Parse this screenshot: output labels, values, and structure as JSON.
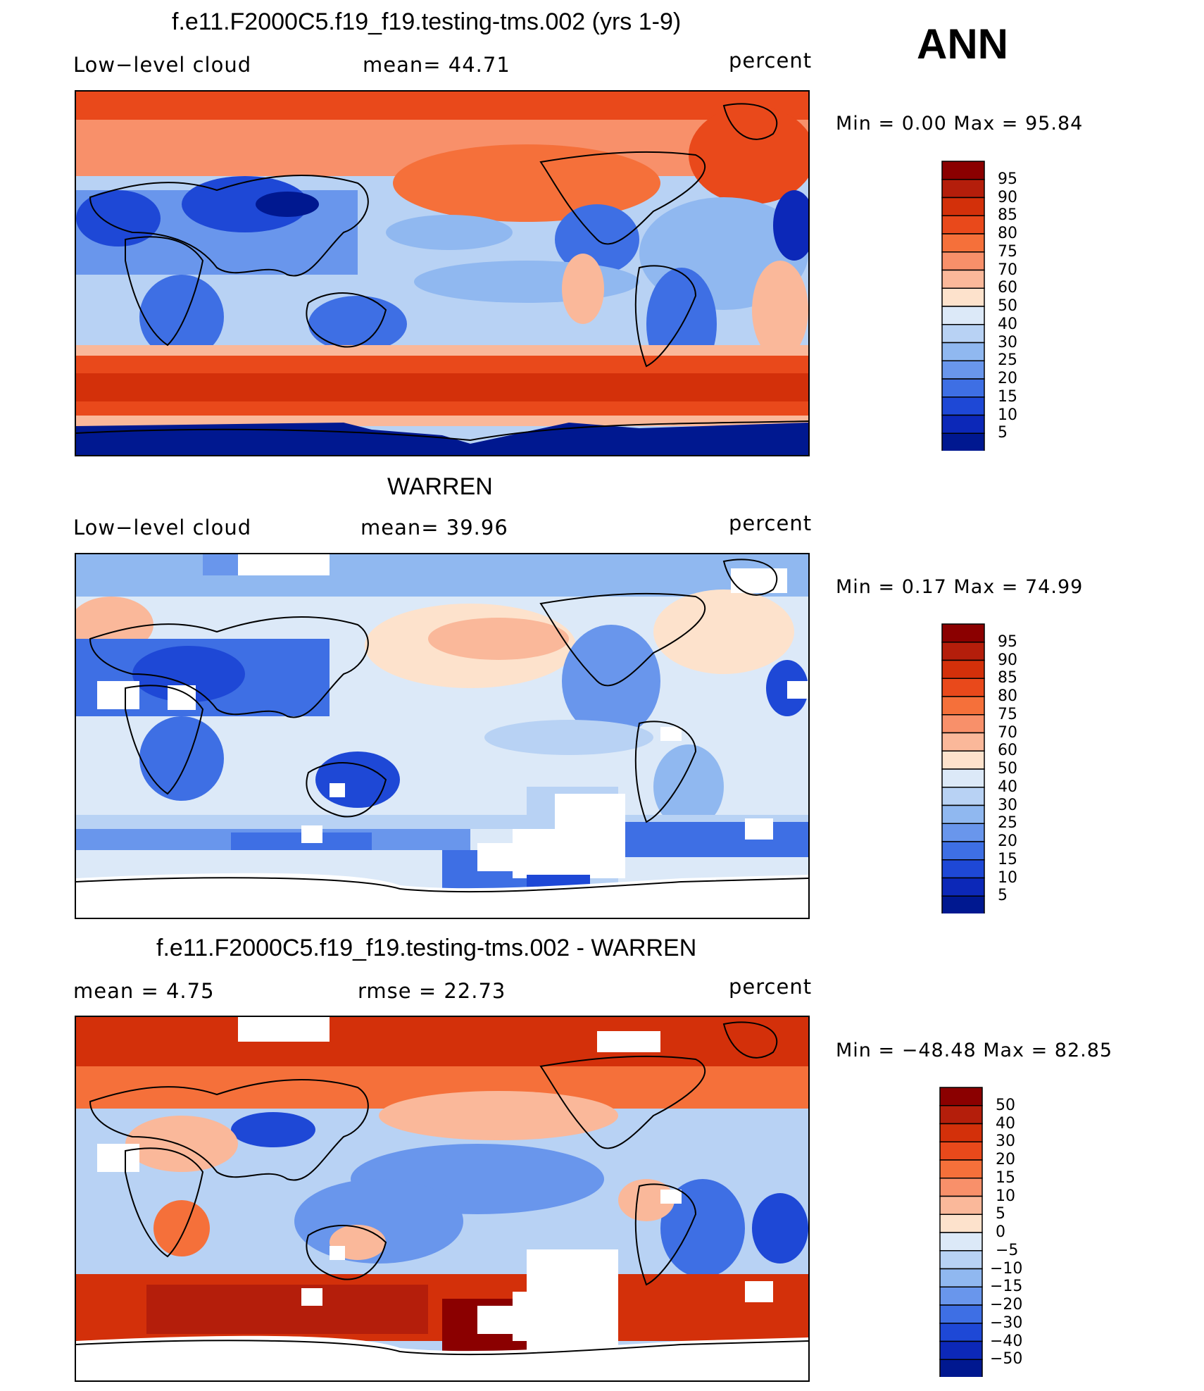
{
  "header": {
    "season": "ANN"
  },
  "panels": [
    {
      "id": "model",
      "title": "f.e11.F2000C5.f19_f19.testing-tms.002 (yrs 1-9)",
      "left_label": "Low−level cloud",
      "center_label": "mean=   44.71",
      "right_label": "percent",
      "minmax": "Min =    0.00 Max =   95.84",
      "colorbar_labels": [
        "95",
        "90",
        "85",
        "80",
        "75",
        "70",
        "60",
        "50",
        "40",
        "30",
        "25",
        "20",
        "15",
        "10",
        "5"
      ]
    },
    {
      "id": "obs",
      "title": "WARREN",
      "left_label": "Low−level cloud",
      "center_label": "mean=   39.96",
      "right_label": "percent",
      "minmax": "Min =    0.17 Max =   74.99",
      "colorbar_labels": [
        "95",
        "90",
        "85",
        "80",
        "75",
        "70",
        "60",
        "50",
        "40",
        "30",
        "25",
        "20",
        "15",
        "10",
        "5"
      ]
    },
    {
      "id": "diff",
      "title": "f.e11.F2000C5.f19_f19.testing-tms.002 - WARREN",
      "left_label": "mean =    4.75",
      "center_label": "rmse =   22.73",
      "right_label": "percent",
      "minmax": "Min = −48.48 Max =   82.85",
      "colorbar_labels": [
        "50",
        "40",
        "30",
        "20",
        "15",
        "10",
        "5",
        "0",
        "−5",
        "−10",
        "−15",
        "−20",
        "−30",
        "−40",
        "−50"
      ]
    }
  ],
  "colors": {
    "full": [
      "#8b0000",
      "#b41e0b",
      "#d3300a",
      "#e9491b",
      "#f5703a",
      "#f8906a",
      "#fab89a",
      "#fde2cc",
      "#dce9f8",
      "#b8d2f4",
      "#90b8f0",
      "#6996ec",
      "#3e6fe4",
      "#1e48d6",
      "#0c28b8",
      "#001890"
    ],
    "scale": "diverging blue-white-red"
  },
  "chart_data": [
    {
      "type": "heatmap",
      "title": "f.e11.F2000C5.f19_f19.testing-tms.002 (yrs 1-9)",
      "variable": "Low−level cloud",
      "units": "percent",
      "mean": 44.71,
      "min": 0.0,
      "max": 95.84,
      "levels": [
        5,
        10,
        15,
        20,
        25,
        30,
        40,
        50,
        60,
        70,
        75,
        80,
        85,
        90,
        95
      ]
    },
    {
      "type": "heatmap",
      "title": "WARREN",
      "variable": "Low−level cloud",
      "units": "percent",
      "mean": 39.96,
      "min": 0.17,
      "max": 74.99,
      "levels": [
        5,
        10,
        15,
        20,
        25,
        30,
        40,
        50,
        60,
        70,
        75,
        80,
        85,
        90,
        95
      ]
    },
    {
      "type": "heatmap",
      "title": "f.e11.F2000C5.f19_f19.testing-tms.002 - WARREN",
      "units": "percent",
      "mean": 4.75,
      "rmse": 22.73,
      "min": -48.48,
      "max": 82.85,
      "levels": [
        -50,
        -40,
        -30,
        -20,
        -15,
        -10,
        -5,
        0,
        5,
        10,
        15,
        20,
        30,
        40,
        50
      ]
    }
  ]
}
